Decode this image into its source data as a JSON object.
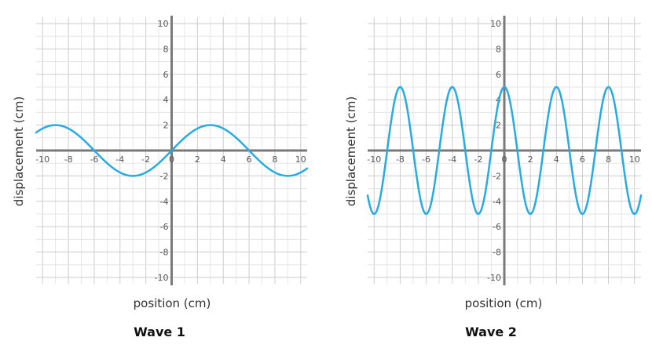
{
  "chart_data": [
    {
      "type": "line",
      "title": "Wave 1",
      "xlabel": "position (cm)",
      "ylabel": "displacement (cm)",
      "xlim": [
        -10.5,
        10.5
      ],
      "ylim": [
        -10.5,
        10.5
      ],
      "x_ticks": [
        -10,
        -8,
        -6,
        -4,
        -2,
        0,
        2,
        4,
        6,
        8,
        10
      ],
      "y_ticks": [
        -10,
        -8,
        -6,
        -4,
        -2,
        2,
        4,
        6,
        8,
        10
      ],
      "grid": true,
      "color": "#29abe2",
      "series": [
        {
          "amplitude": 2,
          "wavelength": 12,
          "x": [
            -10.5,
            -10,
            -9,
            -8,
            -7,
            -6,
            -5,
            -4,
            -3,
            -2,
            -1,
            0,
            1,
            2,
            3,
            4,
            5,
            6,
            7,
            8,
            9,
            10,
            10.5
          ],
          "y": [
            1.41,
            1.73,
            2,
            1.73,
            1,
            0,
            -1,
            -1.73,
            -2,
            -1.73,
            -1,
            0,
            1,
            1.73,
            2,
            1.73,
            1,
            0,
            -1,
            -1.73,
            -2,
            -1.73,
            -1.41
          ]
        }
      ]
    },
    {
      "type": "line",
      "title": "Wave 2",
      "xlabel": "position (cm)",
      "ylabel": "displacement (cm)",
      "xlim": [
        -10.5,
        10.5
      ],
      "ylim": [
        -10.5,
        10.5
      ],
      "x_ticks": [
        -10,
        -8,
        -6,
        -4,
        -2,
        0,
        2,
        4,
        6,
        8,
        10
      ],
      "y_ticks": [
        -10,
        -8,
        -6,
        -4,
        -2,
        2,
        4,
        6,
        8,
        10
      ],
      "grid": true,
      "color": "#29abe2",
      "series": [
        {
          "amplitude": 5,
          "wavelength": 4,
          "x": [
            -10.5,
            -10,
            -9,
            -8,
            -7,
            -6,
            -5,
            -4,
            -3,
            -2,
            -1,
            0,
            1,
            2,
            3,
            4,
            5,
            6,
            7,
            8,
            9,
            10,
            10.5
          ],
          "y": [
            -3.54,
            -5,
            0,
            5,
            0,
            -5,
            0,
            5,
            0,
            -5,
            0,
            5,
            0,
            -5,
            0,
            5,
            0,
            -5,
            0,
            5,
            0,
            -5,
            -3.54
          ]
        }
      ]
    }
  ]
}
